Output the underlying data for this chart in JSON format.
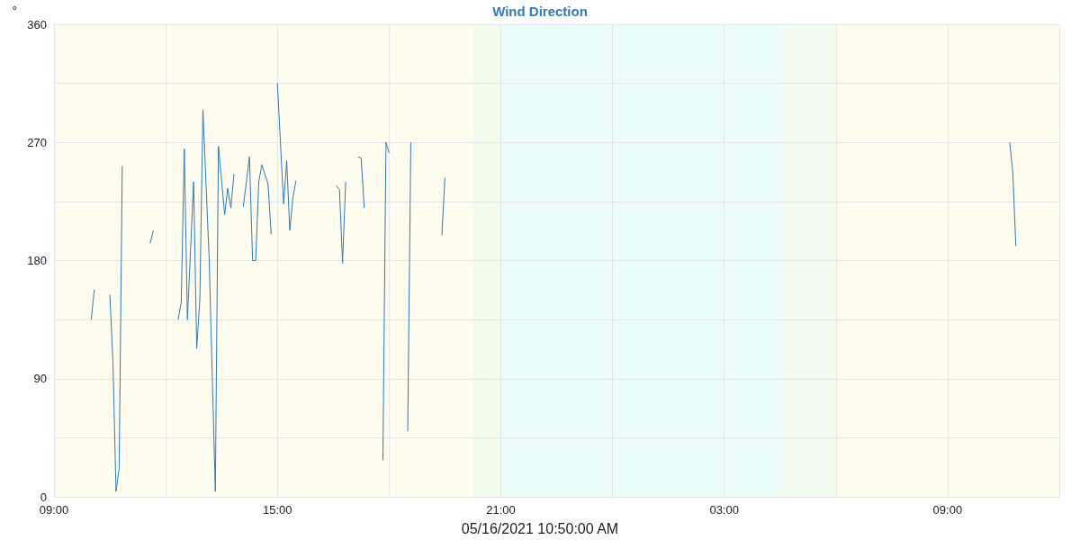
{
  "chart_data": {
    "type": "line",
    "title": "Wind Direction",
    "ylabel": "°",
    "xlabel": "05/16/2021 10:50:00 AM",
    "x": [
      "2021-05-15T10:00",
      "2021-05-15T10:05",
      "2021-05-15T10:15",
      "2021-05-15T10:30",
      "2021-05-15T10:35",
      "2021-05-15T10:40",
      "2021-05-15T10:45",
      "2021-05-15T10:50",
      "2021-05-15T11:10",
      "2021-05-15T11:35",
      "2021-05-15T11:40",
      "2021-05-15T12:00",
      "2021-05-15T12:20",
      "2021-05-15T12:25",
      "2021-05-15T12:30",
      "2021-05-15T12:35",
      "2021-05-15T12:45",
      "2021-05-15T12:50",
      "2021-05-15T12:55",
      "2021-05-15T13:00",
      "2021-05-15T13:10",
      "2021-05-15T13:20",
      "2021-05-15T13:25",
      "2021-05-15T13:35",
      "2021-05-15T13:40",
      "2021-05-15T13:45",
      "2021-05-15T13:50",
      "2021-05-15T13:58",
      "2021-05-15T14:05",
      "2021-05-15T14:15",
      "2021-05-15T14:20",
      "2021-05-15T14:25",
      "2021-05-15T14:30",
      "2021-05-15T14:35",
      "2021-05-15T14:45",
      "2021-05-15T14:50",
      "2021-05-15T14:55",
      "2021-05-15T15:00",
      "2021-05-15T15:10",
      "2021-05-15T15:15",
      "2021-05-15T15:20",
      "2021-05-15T15:25",
      "2021-05-15T15:30",
      "2021-05-15T16:00",
      "2021-05-15T16:35",
      "2021-05-15T16:40",
      "2021-05-15T16:45",
      "2021-05-15T16:50",
      "2021-05-15T17:00",
      "2021-05-15T17:10",
      "2021-05-15T17:15",
      "2021-05-15T17:20",
      "2021-05-15T17:35",
      "2021-05-15T17:50",
      "2021-05-15T17:55",
      "2021-05-15T18:00",
      "2021-05-15T18:15",
      "2021-05-15T18:30",
      "2021-05-15T18:35",
      "2021-05-15T19:00",
      "2021-05-15T19:25",
      "2021-05-15T19:30",
      "2021-05-16T03:00",
      "2021-05-16T10:40",
      "2021-05-16T10:45",
      "2021-05-16T10:50"
    ],
    "series": [
      {
        "color": "#337ab7",
        "values": [
          135,
          158,
          null,
          154,
          103,
          4,
          22,
          252,
          null,
          193,
          203,
          null,
          135,
          148,
          265,
          135,
          240,
          113,
          150,
          295,
          182,
          4,
          267,
          215,
          235,
          220,
          246,
          null,
          221,
          259,
          180,
          180,
          240,
          253,
          238,
          200,
          null,
          315,
          223,
          256,
          203,
          228,
          241,
          null,
          237,
          234,
          178,
          240,
          null,
          259,
          258,
          220,
          null,
          28,
          270,
          262,
          null,
          50,
          270,
          null,
          199,
          243,
          null,
          270,
          248,
          191
        ]
      }
    ],
    "xlim": [
      "2021-05-15T09:00",
      "2021-05-16T12:00"
    ],
    "xticks": [
      {
        "value": "2021-05-15T09:00",
        "label": "09:00"
      },
      {
        "value": "2021-05-15T12:00",
        "label": null
      },
      {
        "value": "2021-05-15T15:00",
        "label": "15:00"
      },
      {
        "value": "2021-05-15T18:00",
        "label": null
      },
      {
        "value": "2021-05-15T21:00",
        "label": "21:00"
      },
      {
        "value": "2021-05-16T00:00",
        "label": null
      },
      {
        "value": "2021-05-16T03:00",
        "label": "03:00"
      },
      {
        "value": "2021-05-16T06:00",
        "label": null
      },
      {
        "value": "2021-05-16T09:00",
        "label": "09:00"
      },
      {
        "value": "2021-05-16T12:00",
        "label": null
      }
    ],
    "ylim": [
      0,
      360
    ],
    "yticks": [
      0,
      {
        "value": 45,
        "label": null
      },
      90,
      {
        "value": 135,
        "label": null
      },
      180,
      {
        "value": 225,
        "label": null
      },
      270,
      {
        "value": 315,
        "label": null
      },
      360
    ],
    "bands": [
      {
        "axis": "x",
        "from": "2021-05-15T09:00",
        "to": "2021-05-15T20:15",
        "color": "#fdfcee"
      },
      {
        "axis": "x",
        "from": "2021-05-15T20:15",
        "to": "2021-05-15T21:00",
        "color": "#f3fdee"
      },
      {
        "axis": "x",
        "from": "2021-05-15T21:00",
        "to": "2021-05-16T04:30",
        "color": "#ecfcfb"
      },
      {
        "axis": "x",
        "from": "2021-05-16T04:30",
        "to": "2021-05-16T06:00",
        "color": "#f0fdf0"
      },
      {
        "axis": "x",
        "from": "2021-05-16T06:00",
        "to": "2021-05-16T12:00",
        "color": "#fdfcee"
      }
    ],
    "grid": true,
    "marker": "none",
    "line_style": "solid"
  }
}
